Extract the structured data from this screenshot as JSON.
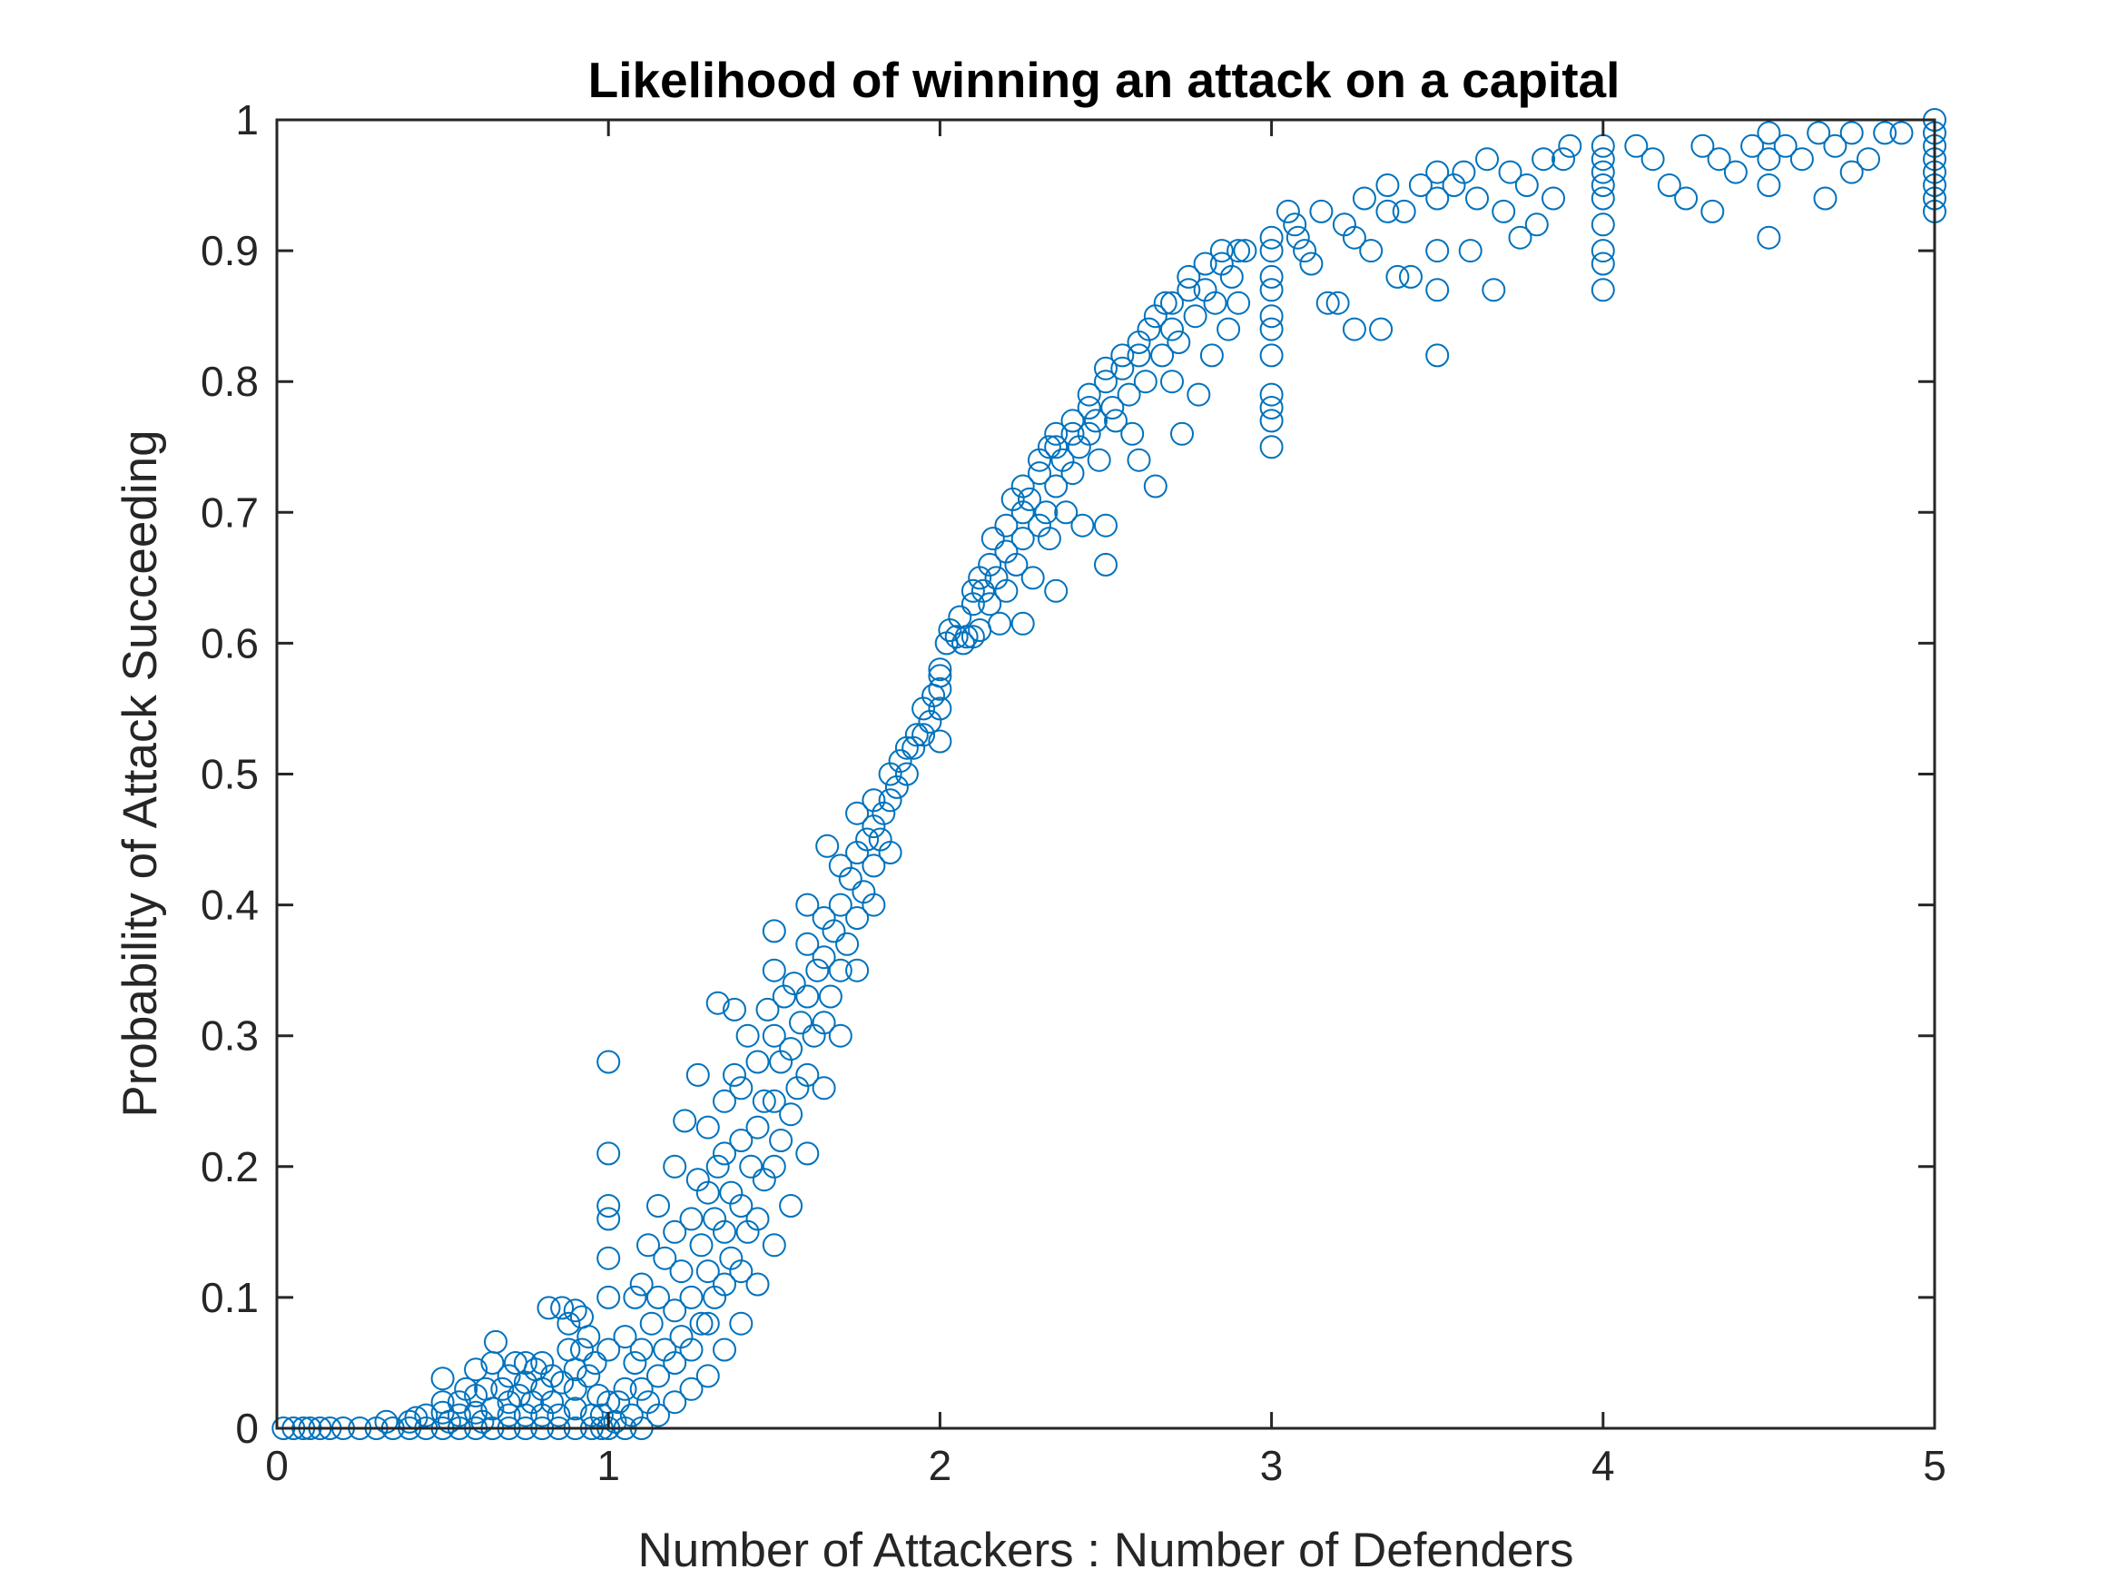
{
  "chart_data": {
    "type": "scatter",
    "title": "Likelihood of winning an attack on a capital",
    "xlabel": "Number of Attackers : Number of Defenders",
    "ylabel": "Probability of Attack Succeeding",
    "xlim": [
      0,
      5
    ],
    "ylim": [
      0,
      1
    ],
    "xticks": [
      "0",
      "1",
      "2",
      "3",
      "4",
      "5"
    ],
    "yticks": [
      "0",
      "0.1",
      "0.2",
      "0.3",
      "0.4",
      "0.5",
      "0.6",
      "0.7",
      "0.8",
      "0.9",
      "1"
    ],
    "grid": false,
    "marker": "open-circle",
    "marker_color": "#0072BD",
    "axis_color": "#262626",
    "points": [
      [
        0.02,
        0.0
      ],
      [
        0.05,
        0.0
      ],
      [
        0.08,
        0.0
      ],
      [
        0.1,
        0.0
      ],
      [
        0.13,
        0.0
      ],
      [
        0.16,
        0.0
      ],
      [
        0.2,
        0.0
      ],
      [
        0.25,
        0.0
      ],
      [
        0.3,
        0.0
      ],
      [
        0.35,
        0.0
      ],
      [
        0.33,
        0.005
      ],
      [
        0.4,
        0.0
      ],
      [
        0.4,
        0.005
      ],
      [
        0.42,
        0.008
      ],
      [
        0.45,
        0.0
      ],
      [
        0.45,
        0.01
      ],
      [
        0.5,
        0.0
      ],
      [
        0.5,
        0.012
      ],
      [
        0.5,
        0.02
      ],
      [
        0.5,
        0.038
      ],
      [
        0.52,
        0.005
      ],
      [
        0.55,
        0.0
      ],
      [
        0.55,
        0.01
      ],
      [
        0.55,
        0.02
      ],
      [
        0.57,
        0.03
      ],
      [
        0.6,
        0.0
      ],
      [
        0.6,
        0.012
      ],
      [
        0.6,
        0.025
      ],
      [
        0.6,
        0.045
      ],
      [
        0.62,
        0.005
      ],
      [
        0.63,
        0.03
      ],
      [
        0.65,
        0.0
      ],
      [
        0.65,
        0.015
      ],
      [
        0.65,
        0.05
      ],
      [
        0.66,
        0.066
      ],
      [
        0.68,
        0.03
      ],
      [
        0.7,
        0.0
      ],
      [
        0.7,
        0.01
      ],
      [
        0.7,
        0.02
      ],
      [
        0.7,
        0.04
      ],
      [
        0.72,
        0.05
      ],
      [
        0.73,
        0.025
      ],
      [
        0.75,
        0.0
      ],
      [
        0.75,
        0.01
      ],
      [
        0.75,
        0.035
      ],
      [
        0.75,
        0.05
      ],
      [
        0.77,
        0.02
      ],
      [
        0.78,
        0.045
      ],
      [
        0.8,
        0.0
      ],
      [
        0.8,
        0.01
      ],
      [
        0.8,
        0.03
      ],
      [
        0.8,
        0.05
      ],
      [
        0.82,
        0.092
      ],
      [
        0.83,
        0.04
      ],
      [
        0.83,
        0.02
      ],
      [
        0.85,
        0.0
      ],
      [
        0.85,
        0.01
      ],
      [
        0.86,
        0.035
      ],
      [
        0.86,
        0.092
      ],
      [
        0.88,
        0.06
      ],
      [
        0.88,
        0.08
      ],
      [
        0.9,
        0.0
      ],
      [
        0.9,
        0.015
      ],
      [
        0.9,
        0.03
      ],
      [
        0.9,
        0.045
      ],
      [
        0.9,
        0.09
      ],
      [
        0.92,
        0.085
      ],
      [
        0.92,
        0.06
      ],
      [
        0.94,
        0.07
      ],
      [
        0.94,
        0.04
      ],
      [
        0.95,
        0.0
      ],
      [
        0.95,
        0.01
      ],
      [
        0.96,
        0.05
      ],
      [
        0.97,
        0.025
      ],
      [
        0.98,
        0.0
      ],
      [
        0.98,
        0.01
      ],
      [
        1.0,
        0.0
      ],
      [
        1.0,
        0.02
      ],
      [
        1.0,
        0.06
      ],
      [
        1.0,
        0.1
      ],
      [
        1.0,
        0.13
      ],
      [
        1.0,
        0.16
      ],
      [
        1.0,
        0.17
      ],
      [
        1.0,
        0.21
      ],
      [
        1.0,
        0.28
      ],
      [
        1.02,
        0.005
      ],
      [
        1.03,
        0.02
      ],
      [
        1.05,
        0.0
      ],
      [
        1.05,
        0.03
      ],
      [
        1.05,
        0.07
      ],
      [
        1.07,
        0.01
      ],
      [
        1.08,
        0.05
      ],
      [
        1.08,
        0.1
      ],
      [
        1.1,
        0.0
      ],
      [
        1.1,
        0.03
      ],
      [
        1.1,
        0.06
      ],
      [
        1.1,
        0.11
      ],
      [
        1.12,
        0.02
      ],
      [
        1.12,
        0.14
      ],
      [
        1.13,
        0.08
      ],
      [
        1.15,
        0.01
      ],
      [
        1.15,
        0.04
      ],
      [
        1.15,
        0.1
      ],
      [
        1.15,
        0.17
      ],
      [
        1.17,
        0.06
      ],
      [
        1.17,
        0.13
      ],
      [
        1.2,
        0.02
      ],
      [
        1.2,
        0.05
      ],
      [
        1.2,
        0.09
      ],
      [
        1.2,
        0.15
      ],
      [
        1.2,
        0.2
      ],
      [
        1.22,
        0.07
      ],
      [
        1.22,
        0.12
      ],
      [
        1.23,
        0.235
      ],
      [
        1.25,
        0.03
      ],
      [
        1.25,
        0.06
      ],
      [
        1.25,
        0.1
      ],
      [
        1.25,
        0.16
      ],
      [
        1.27,
        0.19
      ],
      [
        1.27,
        0.27
      ],
      [
        1.28,
        0.08
      ],
      [
        1.28,
        0.14
      ],
      [
        1.3,
        0.04
      ],
      [
        1.3,
        0.08
      ],
      [
        1.3,
        0.12
      ],
      [
        1.3,
        0.18
      ],
      [
        1.3,
        0.23
      ],
      [
        1.32,
        0.1
      ],
      [
        1.32,
        0.16
      ],
      [
        1.33,
        0.325
      ],
      [
        1.33,
        0.2
      ],
      [
        1.35,
        0.06
      ],
      [
        1.35,
        0.11
      ],
      [
        1.35,
        0.15
      ],
      [
        1.35,
        0.21
      ],
      [
        1.35,
        0.25
      ],
      [
        1.37,
        0.13
      ],
      [
        1.37,
        0.18
      ],
      [
        1.38,
        0.32
      ],
      [
        1.38,
        0.27
      ],
      [
        1.4,
        0.08
      ],
      [
        1.4,
        0.12
      ],
      [
        1.4,
        0.17
      ],
      [
        1.4,
        0.22
      ],
      [
        1.4,
        0.26
      ],
      [
        1.42,
        0.3
      ],
      [
        1.42,
        0.15
      ],
      [
        1.43,
        0.2
      ],
      [
        1.45,
        0.11
      ],
      [
        1.45,
        0.16
      ],
      [
        1.45,
        0.23
      ],
      [
        1.45,
        0.28
      ],
      [
        1.47,
        0.19
      ],
      [
        1.47,
        0.25
      ],
      [
        1.48,
        0.32
      ],
      [
        1.5,
        0.14
      ],
      [
        1.5,
        0.2
      ],
      [
        1.5,
        0.25
      ],
      [
        1.5,
        0.3
      ],
      [
        1.5,
        0.35
      ],
      [
        1.5,
        0.38
      ],
      [
        1.52,
        0.22
      ],
      [
        1.52,
        0.28
      ],
      [
        1.53,
        0.33
      ],
      [
        1.55,
        0.17
      ],
      [
        1.55,
        0.24
      ],
      [
        1.55,
        0.29
      ],
      [
        1.56,
        0.34
      ],
      [
        1.57,
        0.26
      ],
      [
        1.58,
        0.31
      ],
      [
        1.6,
        0.21
      ],
      [
        1.6,
        0.27
      ],
      [
        1.6,
        0.33
      ],
      [
        1.6,
        0.37
      ],
      [
        1.6,
        0.4
      ],
      [
        1.62,
        0.3
      ],
      [
        1.63,
        0.35
      ],
      [
        1.65,
        0.26
      ],
      [
        1.65,
        0.31
      ],
      [
        1.65,
        0.36
      ],
      [
        1.65,
        0.39
      ],
      [
        1.66,
        0.445
      ],
      [
        1.67,
        0.33
      ],
      [
        1.68,
        0.38
      ],
      [
        1.7,
        0.3
      ],
      [
        1.7,
        0.35
      ],
      [
        1.7,
        0.4
      ],
      [
        1.7,
        0.43
      ],
      [
        1.72,
        0.37
      ],
      [
        1.73,
        0.42
      ],
      [
        1.75,
        0.35
      ],
      [
        1.75,
        0.39
      ],
      [
        1.75,
        0.44
      ],
      [
        1.75,
        0.47
      ],
      [
        1.77,
        0.41
      ],
      [
        1.78,
        0.45
      ],
      [
        1.8,
        0.4
      ],
      [
        1.8,
        0.43
      ],
      [
        1.8,
        0.46
      ],
      [
        1.8,
        0.48
      ],
      [
        1.82,
        0.45
      ],
      [
        1.83,
        0.47
      ],
      [
        1.85,
        0.44
      ],
      [
        1.85,
        0.48
      ],
      [
        1.85,
        0.5
      ],
      [
        1.87,
        0.49
      ],
      [
        1.88,
        0.51
      ],
      [
        1.9,
        0.5
      ],
      [
        1.9,
        0.52
      ],
      [
        1.92,
        0.52
      ],
      [
        1.93,
        0.53
      ],
      [
        1.95,
        0.53
      ],
      [
        1.95,
        0.55
      ],
      [
        1.97,
        0.54
      ],
      [
        1.98,
        0.56
      ],
      [
        2.0,
        0.525
      ],
      [
        2.0,
        0.55
      ],
      [
        2.0,
        0.565
      ],
      [
        2.0,
        0.575
      ],
      [
        2.0,
        0.58
      ],
      [
        2.02,
        0.6
      ],
      [
        2.03,
        0.61
      ],
      [
        2.05,
        0.605
      ],
      [
        2.06,
        0.62
      ],
      [
        2.07,
        0.6
      ],
      [
        2.08,
        0.605
      ],
      [
        2.1,
        0.605
      ],
      [
        2.1,
        0.63
      ],
      [
        2.1,
        0.64
      ],
      [
        2.12,
        0.61
      ],
      [
        2.12,
        0.65
      ],
      [
        2.13,
        0.64
      ],
      [
        2.15,
        0.63
      ],
      [
        2.15,
        0.66
      ],
      [
        2.16,
        0.68
      ],
      [
        2.17,
        0.65
      ],
      [
        2.18,
        0.615
      ],
      [
        2.2,
        0.67
      ],
      [
        2.2,
        0.69
      ],
      [
        2.2,
        0.64
      ],
      [
        2.22,
        0.71
      ],
      [
        2.23,
        0.66
      ],
      [
        2.25,
        0.68
      ],
      [
        2.25,
        0.7
      ],
      [
        2.25,
        0.72
      ],
      [
        2.25,
        0.615
      ],
      [
        2.27,
        0.71
      ],
      [
        2.28,
        0.65
      ],
      [
        2.3,
        0.69
      ],
      [
        2.3,
        0.73
      ],
      [
        2.3,
        0.74
      ],
      [
        2.32,
        0.7
      ],
      [
        2.33,
        0.68
      ],
      [
        2.33,
        0.75
      ],
      [
        2.35,
        0.72
      ],
      [
        2.35,
        0.75
      ],
      [
        2.35,
        0.76
      ],
      [
        2.35,
        0.64
      ],
      [
        2.37,
        0.74
      ],
      [
        2.38,
        0.7
      ],
      [
        2.4,
        0.73
      ],
      [
        2.4,
        0.76
      ],
      [
        2.4,
        0.77
      ],
      [
        2.42,
        0.75
      ],
      [
        2.43,
        0.69
      ],
      [
        2.45,
        0.76
      ],
      [
        2.45,
        0.78
      ],
      [
        2.45,
        0.79
      ],
      [
        2.47,
        0.77
      ],
      [
        2.48,
        0.74
      ],
      [
        2.5,
        0.69
      ],
      [
        2.5,
        0.66
      ],
      [
        2.5,
        0.8
      ],
      [
        2.5,
        0.81
      ],
      [
        2.52,
        0.78
      ],
      [
        2.53,
        0.77
      ],
      [
        2.55,
        0.81
      ],
      [
        2.55,
        0.82
      ],
      [
        2.57,
        0.79
      ],
      [
        2.58,
        0.76
      ],
      [
        2.6,
        0.82
      ],
      [
        2.6,
        0.83
      ],
      [
        2.6,
        0.74
      ],
      [
        2.62,
        0.8
      ],
      [
        2.63,
        0.84
      ],
      [
        2.65,
        0.72
      ],
      [
        2.65,
        0.85
      ],
      [
        2.67,
        0.82
      ],
      [
        2.68,
        0.86
      ],
      [
        2.7,
        0.84
      ],
      [
        2.7,
        0.86
      ],
      [
        2.7,
        0.8
      ],
      [
        2.72,
        0.83
      ],
      [
        2.73,
        0.76
      ],
      [
        2.75,
        0.87
      ],
      [
        2.75,
        0.88
      ],
      [
        2.77,
        0.85
      ],
      [
        2.78,
        0.79
      ],
      [
        2.8,
        0.87
      ],
      [
        2.8,
        0.89
      ],
      [
        2.82,
        0.82
      ],
      [
        2.83,
        0.86
      ],
      [
        2.85,
        0.89
      ],
      [
        2.85,
        0.9
      ],
      [
        2.87,
        0.84
      ],
      [
        2.88,
        0.88
      ],
      [
        2.9,
        0.9
      ],
      [
        2.9,
        0.86
      ],
      [
        2.92,
        0.9
      ],
      [
        3.0,
        0.75
      ],
      [
        3.0,
        0.77
      ],
      [
        3.0,
        0.78
      ],
      [
        3.0,
        0.79
      ],
      [
        3.0,
        0.82
      ],
      [
        3.0,
        0.84
      ],
      [
        3.0,
        0.85
      ],
      [
        3.0,
        0.87
      ],
      [
        3.0,
        0.88
      ],
      [
        3.0,
        0.9
      ],
      [
        3.0,
        0.91
      ],
      [
        3.05,
        0.93
      ],
      [
        3.07,
        0.92
      ],
      [
        3.08,
        0.91
      ],
      [
        3.1,
        0.9
      ],
      [
        3.12,
        0.89
      ],
      [
        3.15,
        0.93
      ],
      [
        3.17,
        0.86
      ],
      [
        3.2,
        0.86
      ],
      [
        3.22,
        0.92
      ],
      [
        3.25,
        0.84
      ],
      [
        3.25,
        0.91
      ],
      [
        3.28,
        0.94
      ],
      [
        3.3,
        0.9
      ],
      [
        3.33,
        0.84
      ],
      [
        3.35,
        0.93
      ],
      [
        3.35,
        0.95
      ],
      [
        3.38,
        0.88
      ],
      [
        3.4,
        0.93
      ],
      [
        3.42,
        0.88
      ],
      [
        3.45,
        0.95
      ],
      [
        3.5,
        0.82
      ],
      [
        3.5,
        0.87
      ],
      [
        3.5,
        0.9
      ],
      [
        3.5,
        0.94
      ],
      [
        3.5,
        0.96
      ],
      [
        3.55,
        0.95
      ],
      [
        3.58,
        0.96
      ],
      [
        3.6,
        0.9
      ],
      [
        3.62,
        0.94
      ],
      [
        3.65,
        0.97
      ],
      [
        3.67,
        0.87
      ],
      [
        3.7,
        0.93
      ],
      [
        3.72,
        0.96
      ],
      [
        3.75,
        0.91
      ],
      [
        3.77,
        0.95
      ],
      [
        3.8,
        0.92
      ],
      [
        3.82,
        0.97
      ],
      [
        3.85,
        0.94
      ],
      [
        3.88,
        0.97
      ],
      [
        3.9,
        0.98
      ],
      [
        4.0,
        0.87
      ],
      [
        4.0,
        0.89
      ],
      [
        4.0,
        0.9
      ],
      [
        4.0,
        0.92
      ],
      [
        4.0,
        0.94
      ],
      [
        4.0,
        0.95
      ],
      [
        4.0,
        0.96
      ],
      [
        4.0,
        0.97
      ],
      [
        4.0,
        0.98
      ],
      [
        4.1,
        0.98
      ],
      [
        4.15,
        0.97
      ],
      [
        4.2,
        0.95
      ],
      [
        4.25,
        0.94
      ],
      [
        4.3,
        0.98
      ],
      [
        4.33,
        0.93
      ],
      [
        4.35,
        0.97
      ],
      [
        4.4,
        0.96
      ],
      [
        4.45,
        0.98
      ],
      [
        4.5,
        0.91
      ],
      [
        4.5,
        0.95
      ],
      [
        4.5,
        0.97
      ],
      [
        4.5,
        0.99
      ],
      [
        4.55,
        0.98
      ],
      [
        4.6,
        0.97
      ],
      [
        4.65,
        0.99
      ],
      [
        4.67,
        0.94
      ],
      [
        4.7,
        0.98
      ],
      [
        4.75,
        0.96
      ],
      [
        4.75,
        0.99
      ],
      [
        4.8,
        0.97
      ],
      [
        4.85,
        0.99
      ],
      [
        4.9,
        0.99
      ],
      [
        5.0,
        0.93
      ],
      [
        5.0,
        0.94
      ],
      [
        5.0,
        0.95
      ],
      [
        5.0,
        0.96
      ],
      [
        5.0,
        0.97
      ],
      [
        5.0,
        0.98
      ],
      [
        5.0,
        0.99
      ],
      [
        5.0,
        1.0
      ]
    ]
  }
}
